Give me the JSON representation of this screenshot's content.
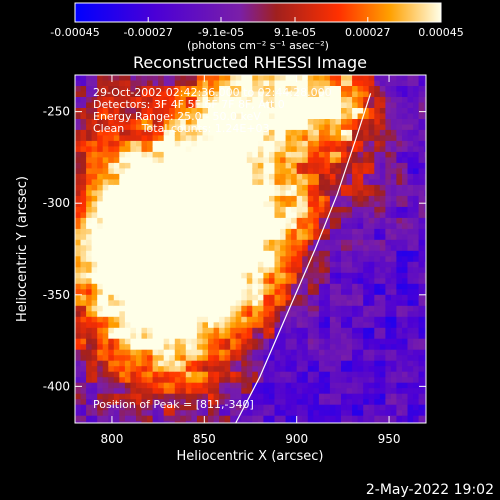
{
  "chart_data": {
    "type": "heatmap",
    "title": "Reconstructed RHESSI Image",
    "xlabel": "Heliocentric X (arcsec)",
    "ylabel": "Heliocentric Y (arcsec)",
    "xlim": [
      780,
      970
    ],
    "ylim": [
      -420,
      -230
    ],
    "x_ticks": [
      800,
      850,
      900,
      950
    ],
    "y_ticks": [
      -250,
      -300,
      -350,
      -400
    ],
    "colorbar": {
      "ticks": [
        "-0.00045",
        "-0.00027",
        "-9.1e-05",
        "9.1e-05",
        "0.00027",
        "0.00045"
      ],
      "tick_values": [
        -0.00045,
        -0.00027,
        -9.1e-05,
        9.1e-05,
        0.00027,
        0.00045
      ],
      "unit_label": "(photons cm⁻² s⁻¹ asec⁻²)",
      "range": [
        -0.00045,
        0.00045
      ]
    },
    "annotations": [
      "29-Oct-2002 02:42:36.000 to 02:44:28.000",
      "Detectors: 3F 4F 5F 6F 7F 8F, Att 0",
      "Energy Range: 25.0 - 50.0 keV",
      "Clean     Total counts: 1.24E+03"
    ],
    "peak_label": "Position of Peak = [811,-340]",
    "peak": [
      811,
      -340
    ],
    "limb": [
      [
        867,
        -420
      ],
      [
        880,
        -395
      ],
      [
        895,
        -360
      ],
      [
        910,
        -325
      ],
      [
        922,
        -295
      ],
      [
        932,
        -265
      ],
      [
        940,
        -240
      ]
    ]
  },
  "datestamp": "2-May-2022 19:02"
}
